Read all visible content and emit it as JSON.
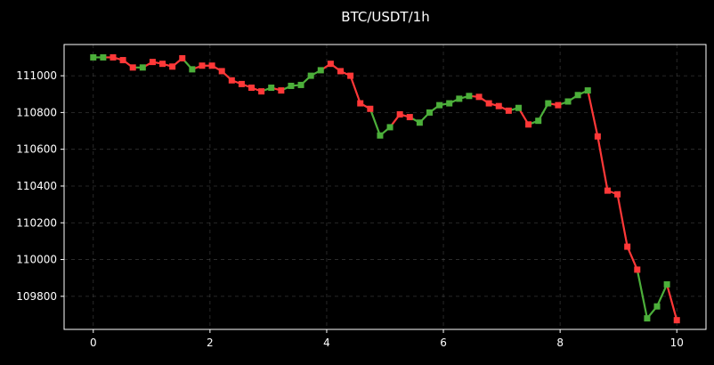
{
  "chart_data": {
    "type": "line",
    "title": "BTC/USDT/1h",
    "xlabel": "",
    "ylabel": "",
    "xlim": [
      -0.5,
      10.5
    ],
    "ylim": [
      109620,
      111170
    ],
    "x_ticks": [
      0,
      2,
      4,
      6,
      8,
      10
    ],
    "y_ticks": [
      109800,
      110000,
      110200,
      110400,
      110600,
      110800,
      111000
    ],
    "grid": true,
    "colors": {
      "background": "#000000",
      "axes": "#ffffff",
      "up": "#4caf3a",
      "down": "#ff3838",
      "grid": "#555555"
    },
    "x": [
      0,
      0.1695,
      0.339,
      0.5085,
      0.678,
      0.8475,
      1.017,
      1.1864,
      1.3559,
      1.5254,
      1.6949,
      1.8644,
      2.0339,
      2.2034,
      2.3729,
      2.5424,
      2.7119,
      2.8814,
      3.0508,
      3.2203,
      3.3898,
      3.5593,
      3.7288,
      3.8983,
      4.0678,
      4.2373,
      4.4068,
      4.5763,
      4.7458,
      4.9153,
      5.0847,
      5.2542,
      5.4237,
      5.5932,
      5.7627,
      5.9322,
      6.1017,
      6.2712,
      6.4407,
      6.6102,
      6.7797,
      6.9492,
      7.1186,
      7.2881,
      7.4576,
      7.6271,
      7.7966,
      7.9661,
      8.1356,
      8.3051,
      8.4746,
      8.6441,
      8.8136,
      8.9831,
      9.1525,
      9.322,
      9.4915,
      9.661,
      9.8305,
      10
    ],
    "y": [
      111100,
      111100,
      111100,
      111085,
      111045,
      111045,
      111075,
      111065,
      111050,
      111095,
      111035,
      111055,
      111055,
      111025,
      110975,
      110955,
      110935,
      110915,
      110935,
      110920,
      110945,
      110950,
      111000,
      111030,
      111065,
      111025,
      111000,
      110850,
      110820,
      110675,
      110720,
      110790,
      110775,
      110745,
      110800,
      110840,
      110850,
      110875,
      110890,
      110885,
      110850,
      110835,
      110810,
      110825,
      110735,
      110755,
      110850,
      110840,
      110860,
      110895,
      110920,
      110670,
      110375,
      110355,
      110070,
      109945,
      109680,
      109745,
      109865,
      109670
    ],
    "segment_dir": [
      "up",
      "down",
      "down",
      "down",
      "up",
      "down",
      "down",
      "down",
      "down",
      "up",
      "down",
      "down",
      "down",
      "down",
      "down",
      "down",
      "down",
      "up",
      "down",
      "up",
      "up",
      "up",
      "up",
      "down",
      "down",
      "down",
      "down",
      "down",
      "up",
      "up",
      "down",
      "down",
      "up",
      "up",
      "up",
      "up",
      "up",
      "up",
      "down",
      "down",
      "down",
      "down",
      "up",
      "down",
      "up",
      "up",
      "down",
      "up",
      "up",
      "up",
      "down",
      "down",
      "down",
      "down",
      "down",
      "up",
      "up",
      "up",
      "down"
    ]
  }
}
